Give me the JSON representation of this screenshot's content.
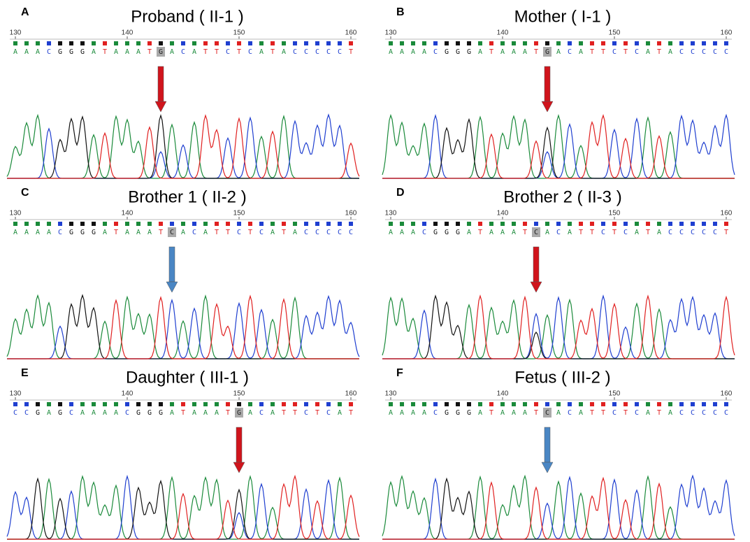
{
  "panels": [
    {
      "letter": "A",
      "title": "Proband ( II-1 )",
      "positions": [
        130,
        140,
        150,
        160
      ],
      "bases": [
        "A",
        "A",
        "A",
        "C",
        "G",
        "G",
        "G",
        "A",
        "T",
        "A",
        "A",
        "A",
        "T",
        "G",
        "A",
        "C",
        "A",
        "T",
        "T",
        "C",
        "T",
        "C",
        "A",
        "T",
        "A",
        "C",
        "C",
        "C",
        "C",
        "C",
        "T"
      ],
      "highlight": 13,
      "arrow_color": "#d0141c"
    },
    {
      "letter": "B",
      "title": "Mother ( I-1 )",
      "positions": [
        130,
        140,
        150,
        160
      ],
      "bases": [
        "A",
        "A",
        "A",
        "A",
        "C",
        "G",
        "G",
        "G",
        "A",
        "T",
        "A",
        "A",
        "A",
        "T",
        "G",
        "A",
        "C",
        "A",
        "T",
        "T",
        "C",
        "T",
        "C",
        "A",
        "T",
        "A",
        "C",
        "C",
        "C",
        "C",
        "C"
      ],
      "highlight": 14,
      "arrow_color": "#d0141c"
    },
    {
      "letter": "C",
      "title": "Brother 1 ( II-2 )",
      "positions": [
        130,
        140,
        150,
        160
      ],
      "bases": [
        "A",
        "A",
        "A",
        "A",
        "C",
        "G",
        "G",
        "G",
        "A",
        "T",
        "A",
        "A",
        "A",
        "T",
        "C",
        "A",
        "C",
        "A",
        "T",
        "T",
        "C",
        "T",
        "C",
        "A",
        "T",
        "A",
        "C",
        "C",
        "C",
        "C",
        "C"
      ],
      "highlight": 14,
      "arrow_color": "#4a86c4"
    },
    {
      "letter": "D",
      "title": "Brother 2 ( II-3 )",
      "positions": [
        130,
        140,
        150,
        160
      ],
      "bases": [
        "A",
        "A",
        "A",
        "C",
        "G",
        "G",
        "G",
        "A",
        "T",
        "A",
        "A",
        "A",
        "T",
        "C",
        "A",
        "C",
        "A",
        "T",
        "T",
        "C",
        "T",
        "C",
        "A",
        "T",
        "A",
        "C",
        "C",
        "C",
        "C",
        "C",
        "T"
      ],
      "highlight": 13,
      "arrow_color": "#d0141c"
    },
    {
      "letter": "E",
      "title": "Daughter ( III-1 )",
      "positions": [
        130,
        140,
        150,
        160
      ],
      "bases": [
        "C",
        "C",
        "G",
        "A",
        "G",
        "C",
        "A",
        "A",
        "A",
        "A",
        "C",
        "G",
        "G",
        "G",
        "A",
        "T",
        "A",
        "A",
        "A",
        "T",
        "G",
        "A",
        "C",
        "A",
        "T",
        "T",
        "C",
        "T",
        "C",
        "A",
        "T"
      ],
      "highlight": 20,
      "arrow_color": "#d0141c"
    },
    {
      "letter": "F",
      "title": "Fetus ( III-2 )",
      "positions": [
        130,
        140,
        150,
        160
      ],
      "bases": [
        "A",
        "A",
        "A",
        "A",
        "C",
        "G",
        "G",
        "G",
        "A",
        "T",
        "A",
        "A",
        "A",
        "T",
        "C",
        "A",
        "C",
        "A",
        "T",
        "T",
        "C",
        "T",
        "C",
        "A",
        "T",
        "A",
        "C",
        "C",
        "C",
        "C",
        "C"
      ],
      "highlight": 14,
      "arrow_color": "#4a86c4"
    }
  ]
}
